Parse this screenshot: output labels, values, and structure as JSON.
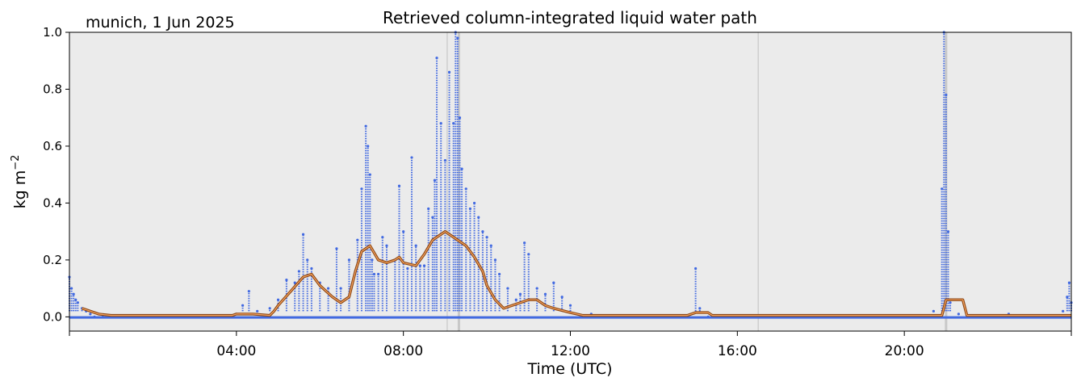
{
  "chart_data": {
    "type": "scatter",
    "title": "Retrieved column-integrated liquid water path",
    "annotation": "munich, 1 Jun 2025",
    "xlabel": "Time (UTC)",
    "ylabel": "kg m",
    "ylabel_superscript": "−2",
    "ylim": [
      -0.05,
      1.0
    ],
    "xlim": [
      "00:00",
      "24:00"
    ],
    "xlim_hours": [
      0,
      24
    ],
    "yticks": [
      0.0,
      0.2,
      0.4,
      0.6,
      0.8,
      1.0
    ],
    "ytick_labels": [
      "0.0",
      "0.2",
      "0.4",
      "0.6",
      "0.8",
      "1.0"
    ],
    "xticks_hours": [
      4,
      8,
      12,
      16,
      20
    ],
    "xtick_labels": [
      "04:00",
      "08:00",
      "12:00",
      "16:00",
      "20:00"
    ],
    "minor_xticks_hours": [
      0,
      24
    ],
    "grid": false,
    "zero_line": true,
    "colors": {
      "background": "#ebebeb",
      "points": "#4169e1",
      "smoothed_outer": "#8b4513",
      "smoothed_inner": "#f4a460",
      "flag_lines": "#c8c8c8"
    },
    "flag_lines_hours": [
      9.05,
      9.33,
      16.5,
      21.0
    ],
    "series": [
      {
        "kind": "scatter",
        "x_hours": [
          0.0,
          0.05,
          0.1,
          0.15,
          0.2,
          0.3,
          0.4,
          0.5,
          0.6,
          0.8,
          1.0,
          1.5,
          2.0,
          2.5,
          3.0,
          3.5,
          4.0,
          4.15,
          4.3,
          4.5,
          4.8,
          5.0,
          5.2,
          5.4,
          5.5,
          5.6,
          5.7,
          5.8,
          6.0,
          6.2,
          6.4,
          6.5,
          6.7,
          6.9,
          7.0,
          7.1,
          7.15,
          7.2,
          7.25,
          7.3,
          7.4,
          7.5,
          7.6,
          7.8,
          7.9,
          8.0,
          8.1,
          8.2,
          8.3,
          8.4,
          8.5,
          8.6,
          8.7,
          8.75,
          8.8,
          8.9,
          9.0,
          9.1,
          9.2,
          9.25,
          9.3,
          9.35,
          9.4,
          9.5,
          9.6,
          9.7,
          9.8,
          9.9,
          10.0,
          10.1,
          10.2,
          10.3,
          10.5,
          10.7,
          10.8,
          10.9,
          11.0,
          11.2,
          11.4,
          11.6,
          11.8,
          12.0,
          12.5,
          13.0,
          14.0,
          14.8,
          15.0,
          15.1,
          15.3,
          16.0,
          17.0,
          18.0,
          19.0,
          20.0,
          20.7,
          20.9,
          20.95,
          21.0,
          21.05,
          21.1,
          21.3,
          22.0,
          22.5,
          23.0,
          23.5,
          23.8,
          23.9,
          23.95,
          24.0
        ],
        "y": [
          0.14,
          0.1,
          0.08,
          0.06,
          0.05,
          0.03,
          0.02,
          0.01,
          0.0,
          0.0,
          0.0,
          0.0,
          0.0,
          0.0,
          0.0,
          0.0,
          0.01,
          0.04,
          0.09,
          0.02,
          0.03,
          0.06,
          0.13,
          0.12,
          0.16,
          0.29,
          0.2,
          0.17,
          0.12,
          0.1,
          0.24,
          0.1,
          0.2,
          0.27,
          0.45,
          0.67,
          0.6,
          0.5,
          0.2,
          0.15,
          0.15,
          0.28,
          0.25,
          0.2,
          0.46,
          0.3,
          0.17,
          0.56,
          0.25,
          0.18,
          0.18,
          0.38,
          0.35,
          0.48,
          0.91,
          0.68,
          0.55,
          0.86,
          0.68,
          1.0,
          0.98,
          0.7,
          0.52,
          0.45,
          0.38,
          0.4,
          0.35,
          0.3,
          0.28,
          0.25,
          0.2,
          0.15,
          0.1,
          0.06,
          0.08,
          0.26,
          0.22,
          0.1,
          0.08,
          0.12,
          0.07,
          0.04,
          0.01,
          0.0,
          0.0,
          0.0,
          0.17,
          0.03,
          0.0,
          0.0,
          0.0,
          0.0,
          0.0,
          0.0,
          0.02,
          0.45,
          1.0,
          0.78,
          0.3,
          0.05,
          0.01,
          0.0,
          0.01,
          0.0,
          0.0,
          0.02,
          0.07,
          0.12,
          0.05
        ]
      },
      {
        "kind": "line",
        "name": "",
        "x_hours": [
          0.3,
          0.5,
          0.7,
          1.0,
          2.0,
          3.0,
          3.9,
          4.0,
          4.4,
          4.8,
          4.9,
          5.0,
          5.3,
          5.6,
          5.8,
          6.0,
          6.3,
          6.5,
          6.7,
          6.85,
          7.0,
          7.2,
          7.4,
          7.6,
          7.8,
          7.9,
          8.0,
          8.3,
          8.5,
          8.7,
          8.8,
          9.0,
          9.2,
          9.5,
          9.7,
          9.9,
          10.0,
          10.2,
          10.4,
          10.6,
          10.8,
          11.0,
          11.2,
          11.4,
          11.6,
          12.0,
          12.3,
          13.0,
          14.0,
          14.8,
          15.0,
          15.3,
          15.4,
          16.0,
          18.0,
          20.0,
          20.9,
          21.0,
          21.4,
          21.5,
          22.0,
          22.5,
          23.0,
          23.5,
          23.8,
          24.0
        ],
        "y": [
          0.03,
          0.02,
          0.01,
          0.005,
          0.005,
          0.005,
          0.005,
          0.01,
          0.01,
          0.005,
          0.02,
          0.04,
          0.09,
          0.14,
          0.15,
          0.11,
          0.07,
          0.05,
          0.07,
          0.16,
          0.23,
          0.25,
          0.2,
          0.19,
          0.2,
          0.21,
          0.19,
          0.18,
          0.22,
          0.27,
          0.28,
          0.3,
          0.28,
          0.25,
          0.21,
          0.16,
          0.11,
          0.06,
          0.03,
          0.04,
          0.05,
          0.06,
          0.06,
          0.04,
          0.03,
          0.015,
          0.005,
          0.005,
          0.005,
          0.005,
          0.015,
          0.015,
          0.005,
          0.005,
          0.005,
          0.005,
          0.005,
          0.06,
          0.06,
          0.005,
          0.005,
          0.005,
          0.005,
          0.005,
          0.005,
          0.005
        ]
      }
    ]
  }
}
